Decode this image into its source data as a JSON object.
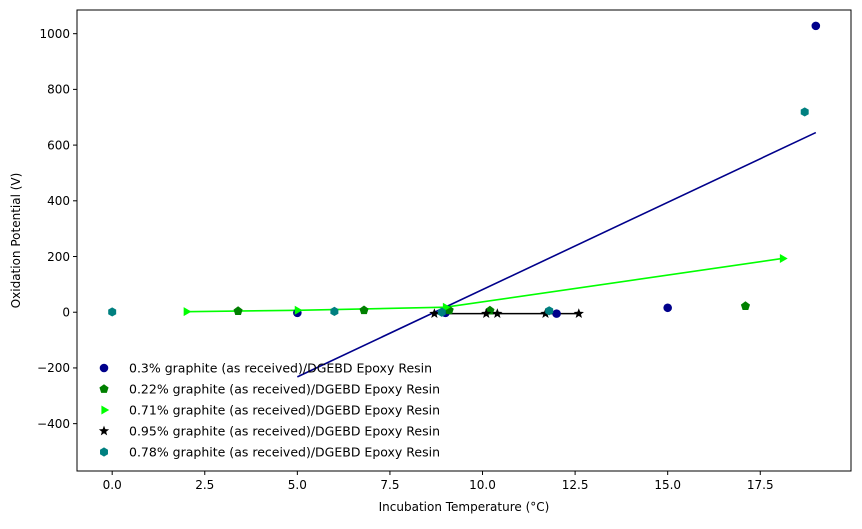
{
  "chart_data": {
    "type": "scatter",
    "title": "",
    "xlabel": "Incubation Temperature (°C)",
    "ylabel": "Oxidation Potential (V)",
    "xlim": [
      -0.95,
      19.95
    ],
    "ylim": [
      -570,
      1085
    ],
    "xticks": [
      0.0,
      2.5,
      5.0,
      7.5,
      10.0,
      12.5,
      15.0,
      17.5
    ],
    "xtick_labels": [
      "0.0",
      "2.5",
      "5.0",
      "7.5",
      "10.0",
      "12.5",
      "15.0",
      "17.5"
    ],
    "yticks": [
      -400,
      -200,
      0,
      200,
      400,
      600,
      800,
      1000
    ],
    "ytick_labels": [
      "−400",
      "−200",
      "0",
      "200",
      "400",
      "600",
      "800",
      "1000"
    ],
    "grid": false,
    "legend_position": "lower-left",
    "series": [
      {
        "name": "0.3% graphite (as received)/DGEBD Epoxy Resin",
        "color": "#00008b",
        "marker": "circle",
        "points": [
          [
            5.0,
            -2
          ],
          [
            9.0,
            -2
          ],
          [
            12.0,
            -5
          ],
          [
            15.0,
            16
          ],
          [
            19.0,
            1028
          ]
        ],
        "fit_line": [
          [
            5.0,
            -232
          ],
          [
            19.0,
            645
          ]
        ]
      },
      {
        "name": "0.22% graphite (as received)/DGEBD Epoxy Resin",
        "color": "#008000",
        "marker": "pentagon",
        "points": [
          [
            3.4,
            4
          ],
          [
            6.8,
            7
          ],
          [
            9.1,
            7
          ],
          [
            10.2,
            6
          ],
          [
            17.1,
            22
          ]
        ],
        "fit_line": null
      },
      {
        "name": "0.71% graphite (as received)/DGEBD Epoxy Resin",
        "color": "#00ff00",
        "marker": "triangle-right",
        "points": [
          [
            2.0,
            2
          ],
          [
            5.0,
            7
          ],
          [
            9.0,
            18
          ],
          [
            18.1,
            193
          ]
        ],
        "fit_line": [
          [
            2.0,
            2
          ],
          [
            5.0,
            7
          ],
          [
            9.0,
            18
          ],
          [
            18.1,
            193
          ]
        ]
      },
      {
        "name": "0.95% graphite (as received)/DGEBD Epoxy Resin",
        "color": "#000000",
        "marker": "star",
        "points": [
          [
            8.7,
            -5
          ],
          [
            10.1,
            -5
          ],
          [
            10.4,
            -5
          ],
          [
            11.7,
            -5
          ],
          [
            12.6,
            -5
          ]
        ],
        "fit_line": [
          [
            8.7,
            -5
          ],
          [
            12.6,
            -5
          ]
        ]
      },
      {
        "name": "0.78% graphite (as received)/DGEBD Epoxy Resin",
        "color": "#008080",
        "marker": "hexagon",
        "points": [
          [
            0.0,
            1
          ],
          [
            6.0,
            3
          ],
          [
            8.9,
            0
          ],
          [
            11.8,
            5
          ],
          [
            18.7,
            719
          ]
        ],
        "fit_line": null
      }
    ]
  }
}
